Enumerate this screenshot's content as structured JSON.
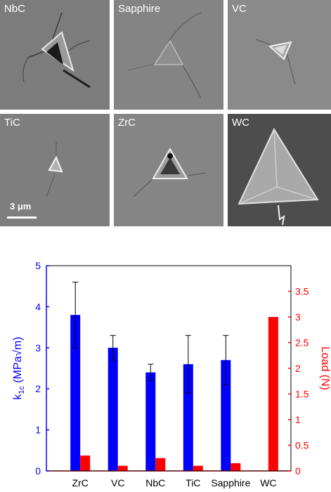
{
  "figure": {
    "panels": [
      {
        "label": "NbC"
      },
      {
        "label": "Sapphire"
      },
      {
        "label": "VC"
      },
      {
        "label": "TiC"
      },
      {
        "label": "ZrC"
      },
      {
        "label": "WC"
      }
    ],
    "scale_bar": "3 μm"
  },
  "chart_data": {
    "type": "bar",
    "categories": [
      "ZrC",
      "VC",
      "NbC",
      "TiC",
      "Sapphire",
      "WC"
    ],
    "series": [
      {
        "axis": "left",
        "color": "#0000ff",
        "values": [
          3.8,
          3.0,
          2.4,
          2.6,
          2.7,
          null
        ],
        "errors": [
          0.8,
          0.3,
          0.2,
          0.7,
          0.6,
          null
        ]
      },
      {
        "axis": "right",
        "color": "#ff0000",
        "values": [
          0.3,
          0.1,
          0.25,
          0.1,
          0.15,
          3.0
        ]
      }
    ],
    "ylabel_left": "k1c (MPa√m)",
    "ylabel_right": "Load (N)",
    "ylim_left": [
      0,
      5
    ],
    "ylim_right": [
      0,
      4
    ],
    "yticks_left": [
      "0",
      "1",
      "2",
      "3",
      "4",
      "5"
    ],
    "yticks_right": [
      "0",
      "0.5",
      "1",
      "1.5",
      "2",
      "2.5",
      "3",
      "3.5"
    ]
  }
}
